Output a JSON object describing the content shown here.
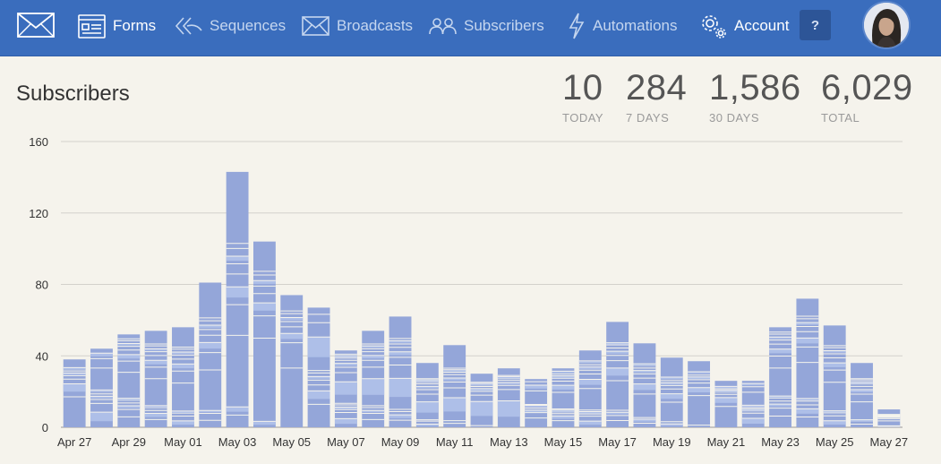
{
  "nav": {
    "logo_icon": "envelope-logo-icon",
    "items": [
      {
        "label": "Forms",
        "icon": "form-window-icon",
        "active": true
      },
      {
        "label": "Sequences",
        "icon": "double-arrow-icon",
        "active": false
      },
      {
        "label": "Broadcasts",
        "icon": "envelope-icon",
        "active": false
      },
      {
        "label": "Subscribers",
        "icon": "people-icon",
        "active": false
      },
      {
        "label": "Automations",
        "icon": "lightning-icon",
        "active": false
      },
      {
        "label": "Account",
        "icon": "gear-icon",
        "active": true
      }
    ],
    "help_label": "?"
  },
  "page": {
    "title": "Subscribers"
  },
  "stats": [
    {
      "value": "10",
      "label": "TODAY"
    },
    {
      "value": "284",
      "label": "7 DAYS"
    },
    {
      "value": "1,586",
      "label": "30 DAYS"
    },
    {
      "value": "6,029",
      "label": "TOTAL"
    }
  ],
  "colors": {
    "nav_bg": "#3a6dbd",
    "bar_primary": "#94a6d9",
    "bar_secondary": "#aebfe8",
    "background": "#f5f3ec"
  },
  "chart_data": {
    "type": "bar",
    "stacked": true,
    "ylim": [
      0,
      160
    ],
    "yticks": [
      0,
      40,
      80,
      120,
      160
    ],
    "grid": true,
    "tick_labels": [
      "Apr 27",
      "Apr 29",
      "May 01",
      "May 03",
      "May 05",
      "May 07",
      "May 09",
      "May 11",
      "May 13",
      "May 15",
      "May 17",
      "May 19",
      "May 21",
      "May 23",
      "May 25",
      "May 27"
    ],
    "categories": [
      "Apr 27",
      "Apr 28",
      "Apr 29",
      "Apr 30",
      "May 01",
      "May 02",
      "May 03",
      "May 04",
      "May 05",
      "May 06",
      "May 07",
      "May 08",
      "May 09",
      "May 10",
      "May 11",
      "May 12",
      "May 13",
      "May 14",
      "May 15",
      "May 16",
      "May 17",
      "May 18",
      "May 19",
      "May 20",
      "May 21",
      "May 22",
      "May 23",
      "May 24",
      "May 25",
      "May 26",
      "May 27"
    ],
    "values": [
      38,
      44,
      52,
      54,
      56,
      81,
      143,
      104,
      74,
      67,
      43,
      54,
      62,
      36,
      46,
      30,
      33,
      27,
      33,
      43,
      59,
      47,
      39,
      37,
      26,
      26,
      56,
      72,
      57,
      36,
      10
    ]
  }
}
